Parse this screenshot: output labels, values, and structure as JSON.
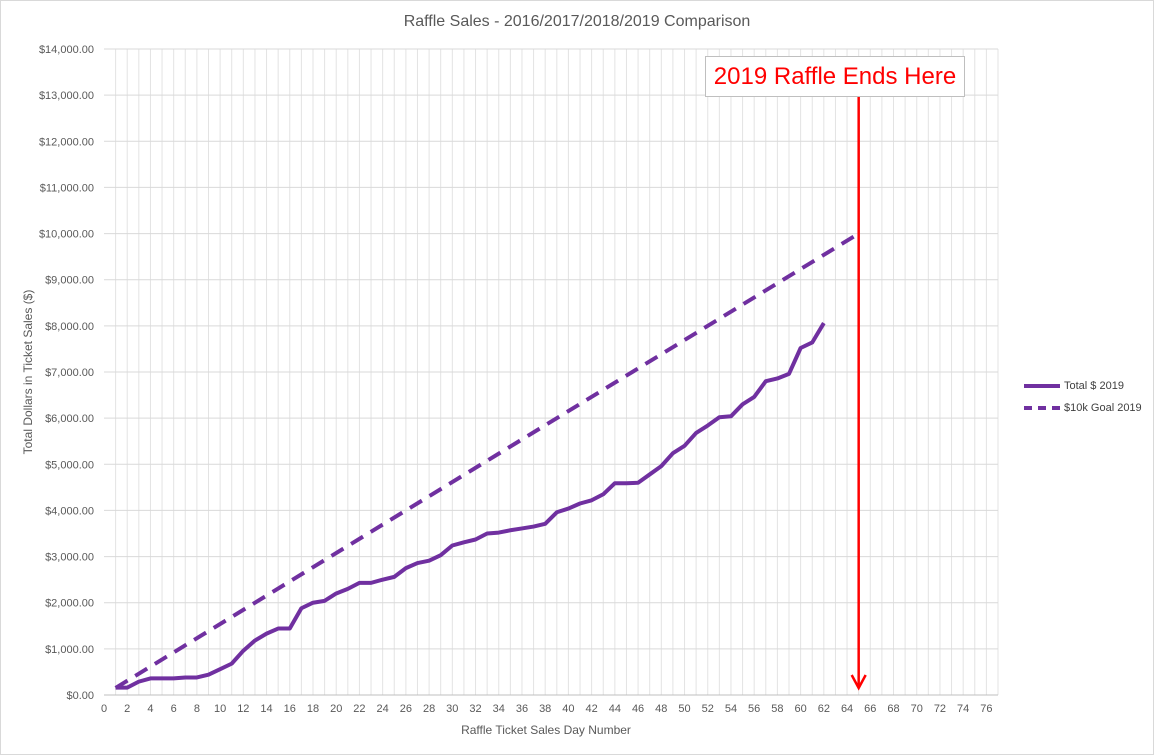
{
  "chart_data": {
    "type": "line",
    "title": "Raffle Sales - 2016/2017/2018/2019 Comparison",
    "xlabel": "Raffle Ticket Sales Day Number",
    "ylabel": "Total Dollars in Ticket Sales ($)",
    "xlim": [
      0,
      77
    ],
    "ylim": [
      0,
      14000
    ],
    "x_ticks": [
      0,
      2,
      4,
      6,
      8,
      10,
      12,
      14,
      16,
      18,
      20,
      22,
      24,
      26,
      28,
      30,
      32,
      34,
      36,
      38,
      40,
      42,
      44,
      46,
      48,
      50,
      52,
      54,
      56,
      58,
      60,
      62,
      64,
      66,
      68,
      70,
      72,
      74,
      76
    ],
    "y_ticks": [
      "$0.00",
      "$1,000.00",
      "$2,000.00",
      "$3,000.00",
      "$4,000.00",
      "$5,000.00",
      "$6,000.00",
      "$7,000.00",
      "$8,000.00",
      "$9,000.00",
      "$10,000.00",
      "$11,000.00",
      "$12,000.00",
      "$13,000.00",
      "$14,000.00"
    ],
    "y_tick_values": [
      0,
      1000,
      2000,
      3000,
      4000,
      5000,
      6000,
      7000,
      8000,
      9000,
      10000,
      11000,
      12000,
      13000,
      14000
    ],
    "grid": true,
    "legend_position": "right",
    "series": [
      {
        "name": "Total $ 2019",
        "style": "solid",
        "color": "#7030a0",
        "x": [
          1,
          2,
          3,
          4,
          5,
          6,
          7,
          8,
          9,
          10,
          11,
          12,
          13,
          14,
          15,
          16,
          17,
          18,
          19,
          20,
          21,
          22,
          23,
          24,
          25,
          26,
          27,
          28,
          29,
          30,
          31,
          32,
          33,
          34,
          35,
          36,
          37,
          38,
          39,
          40,
          41,
          42,
          43,
          44,
          45,
          46,
          47,
          48,
          49,
          50,
          51,
          52,
          53,
          54,
          55,
          56,
          57,
          58,
          59,
          60,
          61,
          62
        ],
        "y": [
          160,
          160,
          290,
          360,
          360,
          360,
          380,
          380,
          440,
          560,
          680,
          960,
          1180,
          1330,
          1440,
          1440,
          1880,
          2000,
          2040,
          2200,
          2300,
          2430,
          2430,
          2500,
          2560,
          2750,
          2860,
          2910,
          3030,
          3240,
          3310,
          3370,
          3500,
          3520,
          3570,
          3610,
          3650,
          3710,
          3960,
          4040,
          4150,
          4220,
          4350,
          4590,
          4590,
          4600,
          4780,
          4960,
          5240,
          5400,
          5680,
          5840,
          6020,
          6040,
          6300,
          6460,
          6800,
          6860,
          6960,
          7520,
          7640,
          8060
        ]
      },
      {
        "name": "$10k Goal 2019",
        "style": "dashed",
        "color": "#7030a0",
        "x": [
          1,
          65
        ],
        "y": [
          153.85,
          10000
        ]
      }
    ],
    "annotation": {
      "text": "2019 Raffle Ends Here",
      "color": "#ff0000",
      "x": 65
    }
  }
}
